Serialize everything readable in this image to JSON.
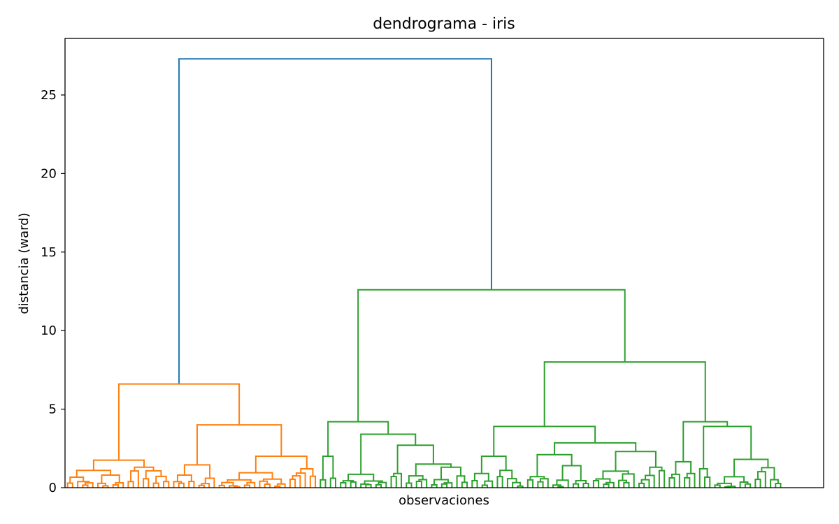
{
  "chart_data": {
    "type": "dendrogram",
    "title": "dendrograma - iris",
    "xlabel": "observaciones",
    "ylabel": "distancia (ward)",
    "ylim": [
      0,
      28.6
    ],
    "yticks": [
      0,
      5,
      10,
      15,
      20,
      25
    ],
    "xticks": [],
    "grid": false,
    "leaf_count": 150,
    "colors": {
      "above_threshold": "#1f77b4",
      "cluster_1": "#ff7f0e",
      "cluster_2": "#2ca02c"
    },
    "clusters": [
      {
        "color": "#ff7f0e",
        "leaves": 50,
        "merge_height": 6.6
      },
      {
        "color": "#2ca02c",
        "leaves": 100,
        "merge_height": 12.6
      }
    ],
    "main_merges": [
      {
        "height": 27.3,
        "joins": [
          "orange cluster",
          "green cluster"
        ]
      },
      {
        "height": 12.6,
        "joins": [
          "green left group",
          "green right group"
        ]
      },
      {
        "height": 8.0,
        "joins": [
          "green middle group",
          "green rightmost group"
        ]
      },
      {
        "height": 6.6,
        "joins": [
          "orange left group",
          "orange right group"
        ]
      },
      {
        "height": 4.2,
        "joins": [
          "green left subgroup A",
          "green left subgroup B"
        ]
      },
      {
        "height": 4.2,
        "joins": [
          "green rightmost subgroup A",
          "green rightmost subgroup B"
        ]
      },
      {
        "height": 4.0,
        "joins": [
          "orange right subgroup A",
          "orange right subgroup B"
        ]
      },
      {
        "height": 3.9,
        "joins": [
          "green middle subgroup A",
          "green middle subgroup B"
        ]
      },
      {
        "height": 3.9,
        "joins": [
          "green rightmost subgroup B1",
          "green rightmost subgroup B2"
        ]
      }
    ]
  }
}
